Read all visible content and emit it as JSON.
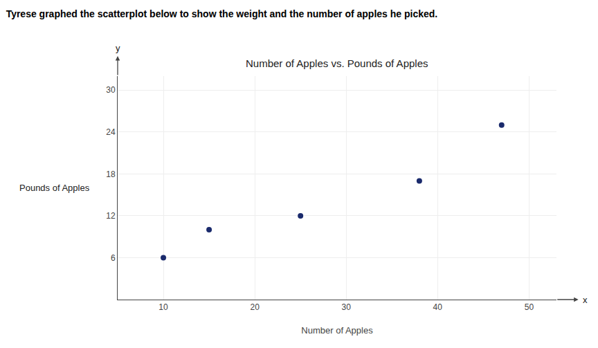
{
  "chart_data": {
    "type": "scatter",
    "title": "Number of Apples vs. Pounds of Apples",
    "subtitle": "Tyrese graphed the scatterplot below to show the weight and the number of apples he picked.",
    "xlabel": "Number of Apples",
    "ylabel": "Pounds of Apples",
    "x": [
      10,
      15,
      25,
      38,
      47
    ],
    "values": [
      6,
      10,
      12,
      17,
      25
    ],
    "color": "#1a2a6c",
    "marker": "circle",
    "xlim": [
      5,
      53
    ],
    "ylim": [
      0,
      32
    ],
    "xticks": [
      10,
      20,
      30,
      40,
      50
    ],
    "yticks": [
      6,
      12,
      18,
      24,
      30
    ],
    "grid": true,
    "annotations": [
      "y",
      "x"
    ]
  }
}
